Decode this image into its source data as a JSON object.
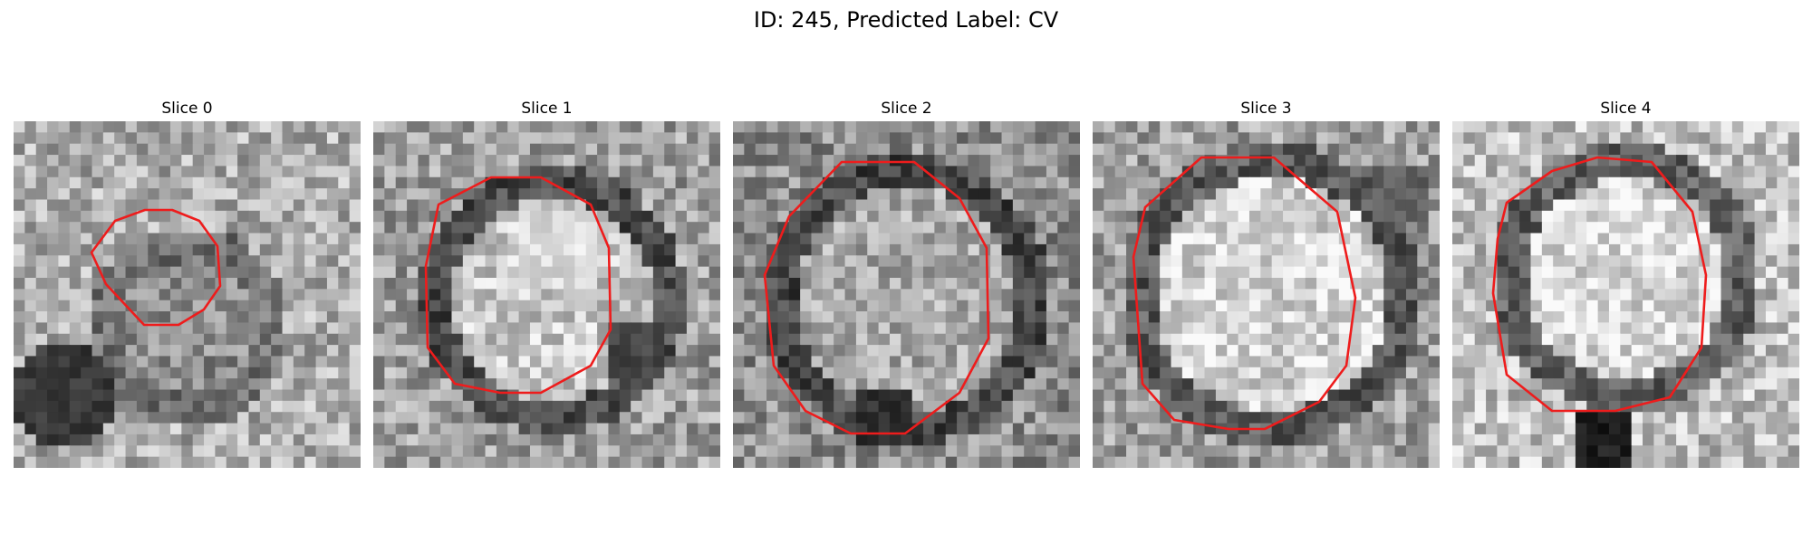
{
  "figure": {
    "title": "ID: 245, Predicted Label: CV"
  },
  "slices": [
    {
      "title": "Slice 0"
    },
    {
      "title": "Slice 1"
    },
    {
      "title": "Slice 2"
    },
    {
      "title": "Slice 3"
    },
    {
      "title": "Slice 4"
    }
  ],
  "colors": {
    "contour": "#ee1c1c",
    "background": "#ffffff"
  }
}
